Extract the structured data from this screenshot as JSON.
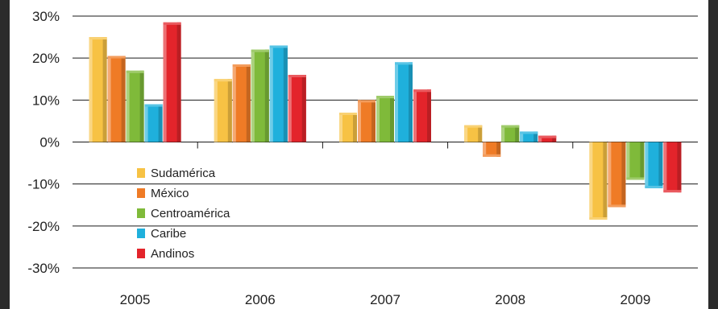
{
  "chart_data": {
    "type": "bar",
    "title": "",
    "xlabel": "",
    "ylabel": "",
    "ylim": [
      -30,
      30
    ],
    "yticks": [
      "30%",
      "20%",
      "10%",
      "0%",
      "-10%",
      "-20%",
      "-30%"
    ],
    "ytick_values": [
      30,
      20,
      10,
      0,
      -10,
      -20,
      -30
    ],
    "categories": [
      "2005",
      "2006",
      "2007",
      "2008",
      "2009"
    ],
    "grid": true,
    "legend_position": "inside-left-lower",
    "series": [
      {
        "name": "Sudamérica",
        "color": "#f7c244",
        "values": [
          25,
          15,
          7,
          4,
          -18.5
        ]
      },
      {
        "name": "México",
        "color": "#ef7b26",
        "values": [
          20.5,
          18.5,
          10,
          -3.5,
          -15.5
        ]
      },
      {
        "name": "Centroamérica",
        "color": "#7fba3a",
        "values": [
          17,
          22,
          11,
          4,
          -9
        ]
      },
      {
        "name": "Caribe",
        "color": "#1fb0dc",
        "values": [
          9,
          23,
          19,
          2.5,
          -11
        ]
      },
      {
        "name": "Andinos",
        "color": "#e3242b",
        "values": [
          28.5,
          16,
          12.5,
          1.5,
          -12
        ]
      }
    ]
  }
}
